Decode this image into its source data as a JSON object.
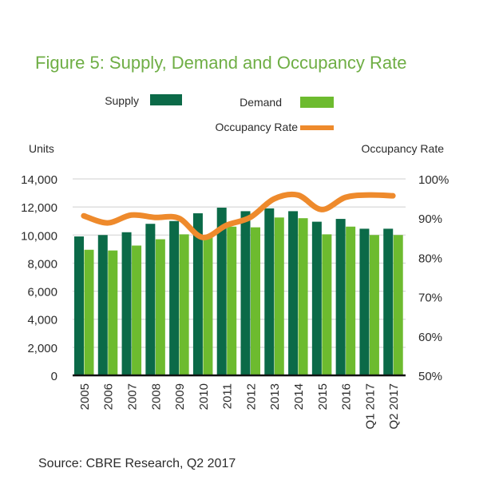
{
  "chart_data": {
    "type": "bar",
    "title": "Figure 5: Supply, Demand and Occupancy Rate",
    "categories": [
      "2005",
      "2006",
      "2007",
      "2008",
      "2009",
      "2010",
      "2011",
      "2012",
      "2013",
      "2014",
      "2015",
      "2016",
      "Q1 2017",
      "Q2 2017"
    ],
    "series": [
      {
        "name": "Supply",
        "type": "bar",
        "axis": "left",
        "color": "#0b6a48",
        "values": [
          9900,
          10000,
          10200,
          10800,
          11000,
          11550,
          11950,
          11700,
          11900,
          11700,
          10950,
          11150,
          10450,
          10450
        ]
      },
      {
        "name": "Demand",
        "type": "bar",
        "axis": "left",
        "color": "#6dbb2f",
        "values": [
          8950,
          8900,
          9250,
          9700,
          10050,
          9850,
          10600,
          10550,
          11250,
          11200,
          10050,
          10600,
          10000,
          10000
        ]
      },
      {
        "name": "Occupancy Rate",
        "type": "line",
        "axis": "right",
        "color": "#ee8a2c",
        "unit": "%",
        "values": [
          90.6,
          88.8,
          90.8,
          90.2,
          90.0,
          85.1,
          88.2,
          90.2,
          94.9,
          95.9,
          92.2,
          95.3,
          95.9,
          95.7
        ]
      }
    ],
    "ylabel": "Units",
    "ylabel_right": "Occupancy Rate",
    "ylim": [
      0,
      14000
    ],
    "ylim_right": [
      50,
      100
    ],
    "yticks": [
      "0",
      "2,000",
      "4,000",
      "6,000",
      "8,000",
      "10,000",
      "12,000",
      "14,000"
    ],
    "yticks_right": [
      "50%",
      "60%",
      "70%",
      "80%",
      "90%",
      "100%"
    ],
    "grid": true,
    "legend": {
      "placement": "top",
      "items": [
        {
          "label": "Supply",
          "color": "#0b6a48"
        },
        {
          "label": "Demand",
          "color": "#6dbb2f"
        },
        {
          "label": "Occupancy Rate",
          "color": "#ee8a2c"
        }
      ]
    },
    "source": "Source: CBRE Research, Q2 2017"
  }
}
